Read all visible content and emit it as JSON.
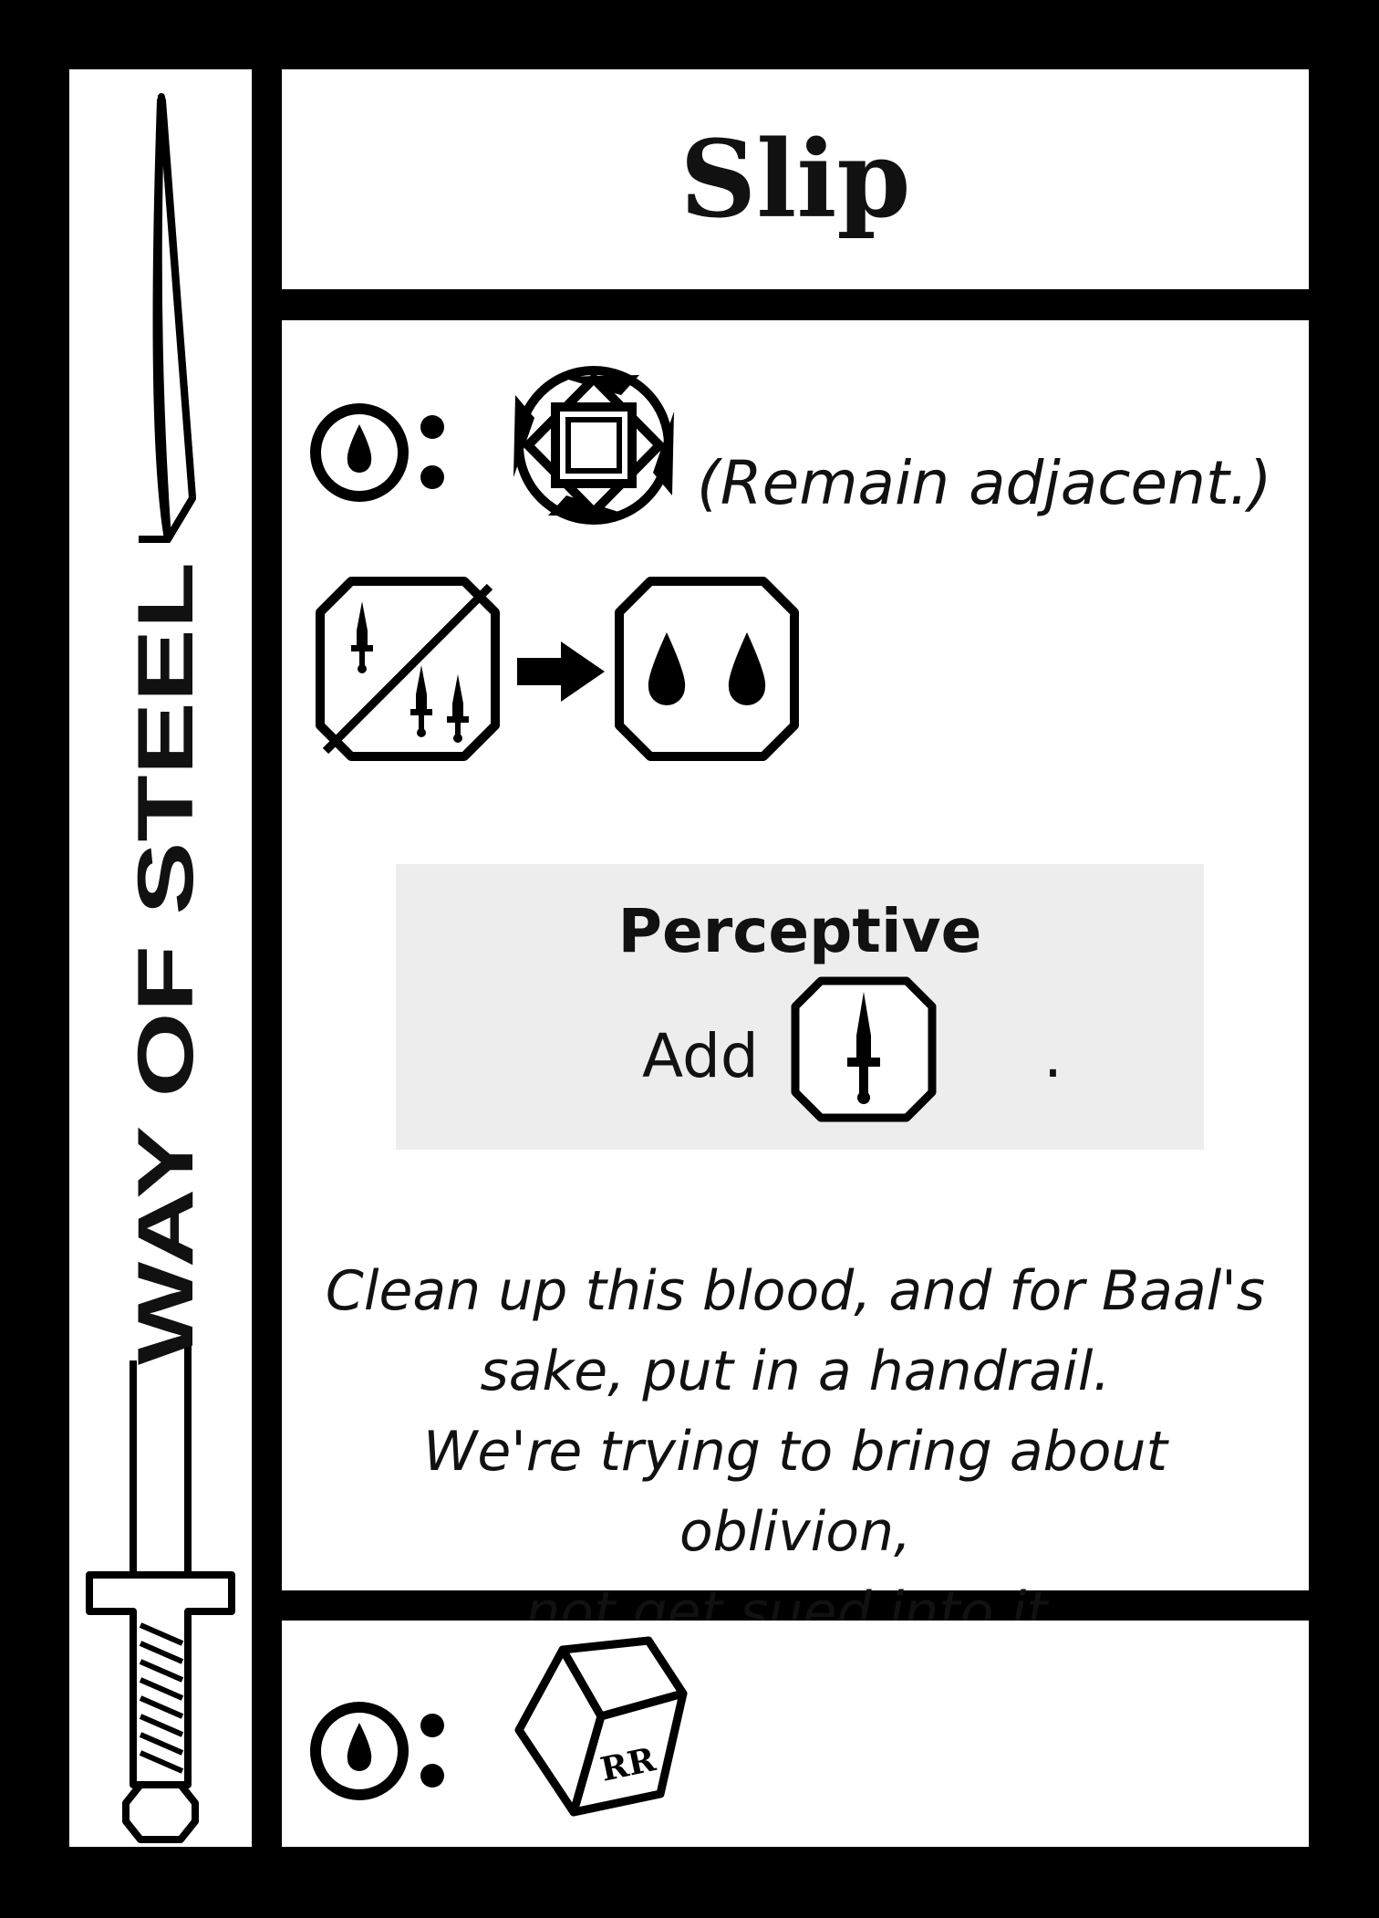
{
  "card": {
    "title": "Slip",
    "brand": "WAY OF STEEL",
    "main_cost_icon": "blood-drop-token-icon",
    "main_effect_icon": "reposition-compass-icon",
    "main_effect_note": "(Remain adjacent.)",
    "conversion": {
      "from_icon": "one-or-two-daggers-icon",
      "arrow_icon": "arrow-right-icon",
      "to_icon": "two-blood-drops-icon"
    },
    "keyword": {
      "name": "Perceptive",
      "add_label": "Add",
      "add_icon": "dagger-die-icon",
      "period": "."
    },
    "flavor_lines": [
      "Clean up this blood, and for Baal's",
      "sake, put in a handrail.",
      "We're trying to bring about oblivion,",
      "not get sued into it."
    ],
    "footer": {
      "cost_icon": "blood-drop-token-icon",
      "effect_icon": "reroll-die-icon",
      "die_label": "RR"
    }
  }
}
